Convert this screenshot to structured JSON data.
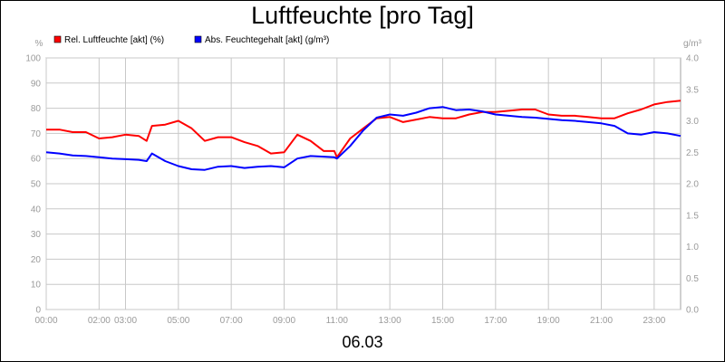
{
  "title": "Luftfeuchte [pro Tag]",
  "x_caption": "06.03",
  "chart_data": {
    "type": "line",
    "title": "Luftfeuchte [pro Tag]",
    "xlabel": "06.03",
    "y_left": {
      "label": "%",
      "lim": [
        0,
        100
      ],
      "ticks": [
        "0",
        "10",
        "20",
        "30",
        "40",
        "50",
        "60",
        "70",
        "80",
        "90",
        "100"
      ]
    },
    "y_right": {
      "label": "g/m³",
      "lim": [
        0.0,
        4.0
      ],
      "ticks": [
        "0.0",
        "0.5",
        "1.0",
        "1.5",
        "2.0",
        "2.5",
        "3.0",
        "3.5",
        "4.0"
      ]
    },
    "x_ticks": [
      {
        "label": "00:00",
        "h": 0
      },
      {
        "label": "02:00",
        "h": 2
      },
      {
        "label": "03:00",
        "h": 3
      },
      {
        "label": "05:00",
        "h": 5
      },
      {
        "label": "07:00",
        "h": 7
      },
      {
        "label": "09:00",
        "h": 9
      },
      {
        "label": "11:00",
        "h": 11
      },
      {
        "label": "13:00",
        "h": 13
      },
      {
        "label": "15:00",
        "h": 15
      },
      {
        "label": "17:00",
        "h": 17
      },
      {
        "label": "19:00",
        "h": 19
      },
      {
        "label": "21:00",
        "h": 21
      },
      {
        "label": "23:00",
        "h": 23
      }
    ],
    "x_range_hours": [
      0,
      24
    ],
    "grid": true,
    "legend_position": "top-left",
    "series": [
      {
        "name": "Rel. Luftfeuchte [akt] (%)",
        "axis": "left",
        "color": "#ff0000",
        "x": [
          0,
          0.5,
          1.0,
          1.5,
          2.0,
          2.5,
          3.0,
          3.5,
          3.8,
          4.0,
          4.5,
          5.0,
          5.5,
          6.0,
          6.5,
          7.0,
          7.5,
          8.0,
          8.5,
          9.0,
          9.5,
          10.0,
          10.5,
          10.9,
          11.0,
          11.5,
          12.0,
          12.5,
          13.0,
          13.5,
          14.0,
          14.5,
          15.0,
          15.5,
          16.0,
          16.5,
          17.0,
          17.5,
          18.0,
          18.5,
          19.0,
          19.5,
          20.0,
          20.5,
          21.0,
          21.5,
          22.0,
          22.5,
          23.0,
          23.5,
          24.0
        ],
        "y": [
          71.5,
          71.5,
          70.5,
          70.5,
          68,
          68.5,
          69.5,
          69,
          67,
          73,
          73.5,
          75,
          72,
          67,
          68.5,
          68.5,
          66.5,
          65,
          62,
          62.5,
          69.5,
          67,
          63,
          63,
          60.5,
          68,
          72,
          76,
          76.5,
          74.5,
          75.5,
          76.5,
          76,
          76,
          77.5,
          78.5,
          78.5,
          79,
          79.5,
          79.5,
          77.5,
          77,
          77,
          76.5,
          76,
          76,
          78,
          79.5,
          81.5,
          82.5,
          83
        ]
      },
      {
        "name": "Abs. Feuchtegehalt [akt] (g/m³)",
        "axis": "right",
        "color": "#0000ff",
        "x": [
          0,
          0.5,
          1.0,
          1.5,
          2.0,
          2.5,
          3.0,
          3.5,
          3.8,
          4.0,
          4.5,
          5.0,
          5.5,
          6.0,
          6.5,
          7.0,
          7.5,
          8.0,
          8.5,
          9.0,
          9.5,
          10.0,
          10.5,
          10.9,
          11.0,
          11.5,
          12.0,
          12.5,
          13.0,
          13.5,
          14.0,
          14.5,
          15.0,
          15.5,
          16.0,
          16.5,
          17.0,
          17.5,
          18.0,
          18.5,
          19.0,
          19.5,
          20.0,
          20.5,
          21.0,
          21.5,
          22.0,
          22.5,
          23.0,
          23.5,
          24.0
        ],
        "y": [
          2.5,
          2.48,
          2.45,
          2.44,
          2.42,
          2.4,
          2.39,
          2.38,
          2.36,
          2.48,
          2.36,
          2.28,
          2.23,
          2.22,
          2.27,
          2.28,
          2.25,
          2.27,
          2.28,
          2.26,
          2.4,
          2.44,
          2.43,
          2.42,
          2.4,
          2.6,
          2.85,
          3.05,
          3.1,
          3.08,
          3.13,
          3.2,
          3.22,
          3.17,
          3.18,
          3.15,
          3.1,
          3.08,
          3.06,
          3.05,
          3.03,
          3.01,
          3.0,
          2.98,
          2.96,
          2.92,
          2.8,
          2.78,
          2.82,
          2.8,
          2.76
        ]
      }
    ]
  }
}
